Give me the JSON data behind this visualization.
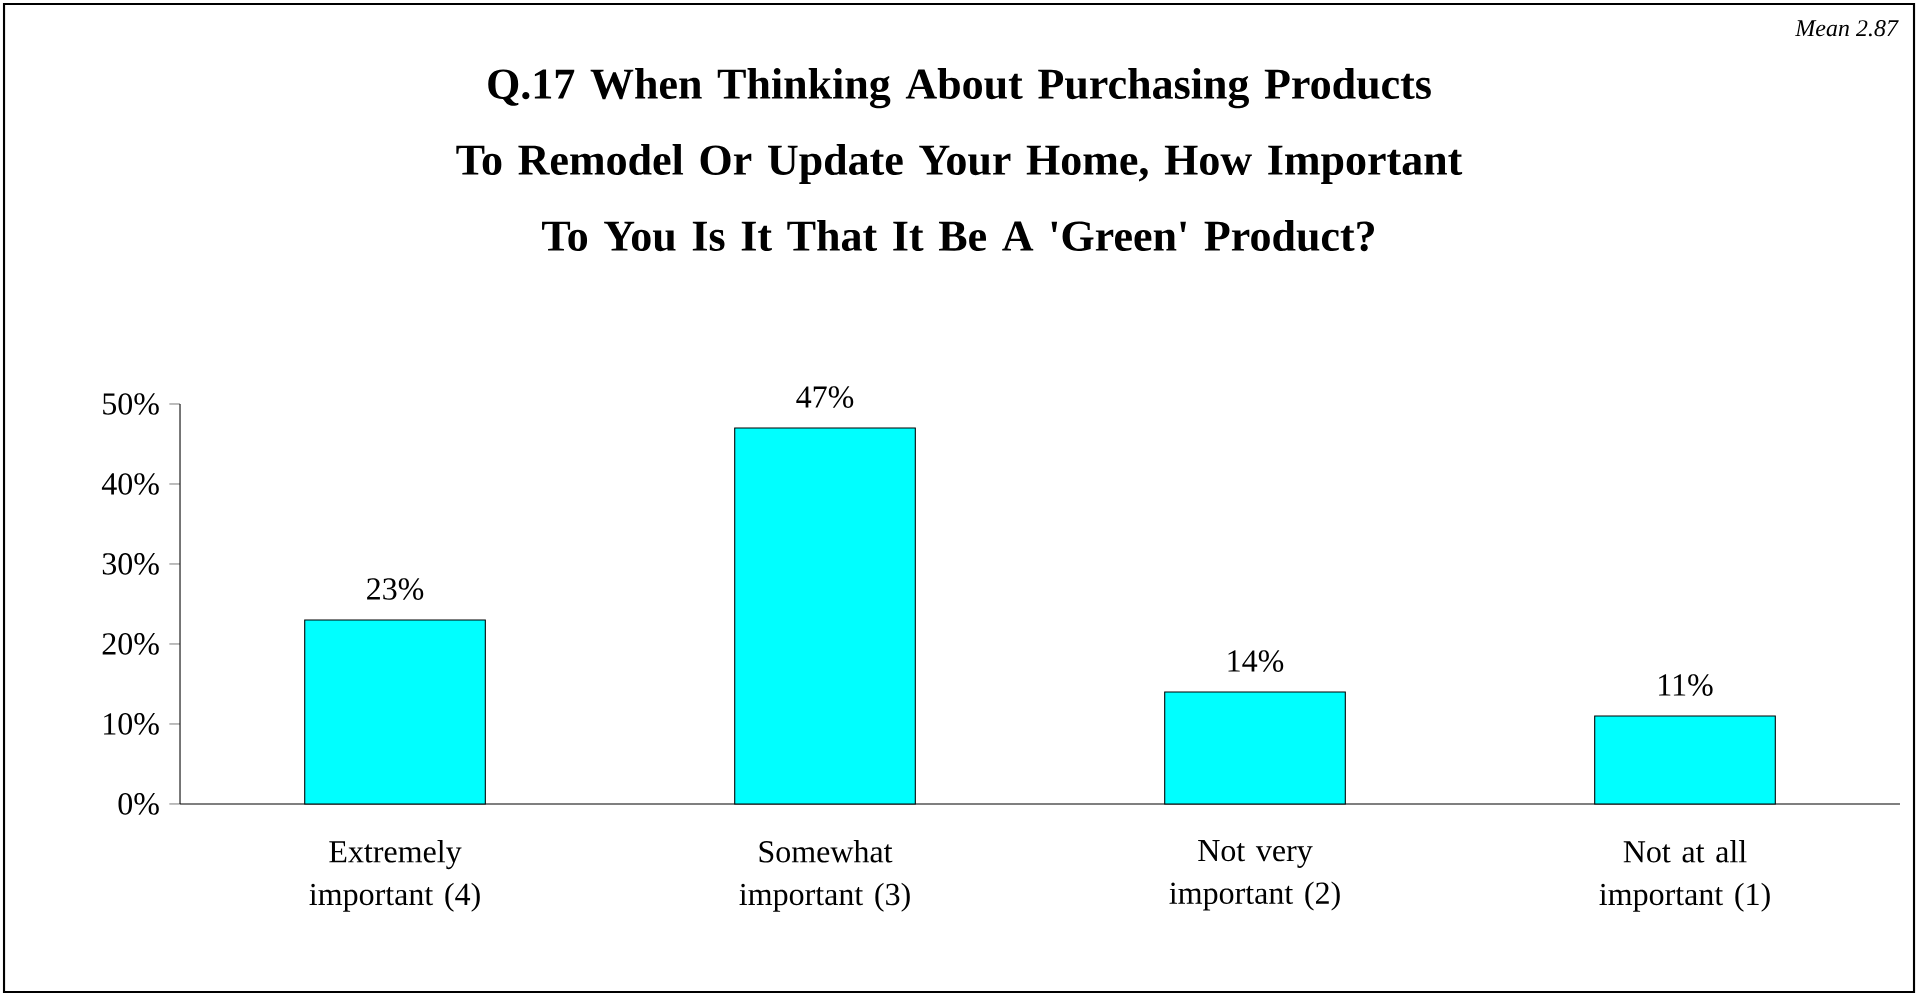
{
  "chart_data": {
    "type": "bar",
    "title": "Q.17  When Thinking About Purchasing Products To Remodel Or Update Your Home, How Important To You Is It That It Be A 'Green' Product?",
    "annotations": [
      "Mean 2.87"
    ],
    "categories": [
      "Extremely important (4)",
      "Somewhat important (3)",
      "Not very important (2)",
      "Not at all important (1)"
    ],
    "values": [
      23,
      47,
      14,
      11
    ],
    "value_labels": [
      "23%",
      "47%",
      "14%",
      "11%"
    ],
    "color": "#00ffff",
    "ylim": [
      0,
      50
    ],
    "yticks": [
      {
        "value": 0,
        "label": "0%"
      },
      {
        "value": 10,
        "label": "10%"
      },
      {
        "value": 20,
        "label": "20%"
      },
      {
        "value": 30,
        "label": "30%"
      },
      {
        "value": 40,
        "label": "40%"
      },
      {
        "value": 50,
        "label": "50%"
      }
    ],
    "grid": false
  }
}
